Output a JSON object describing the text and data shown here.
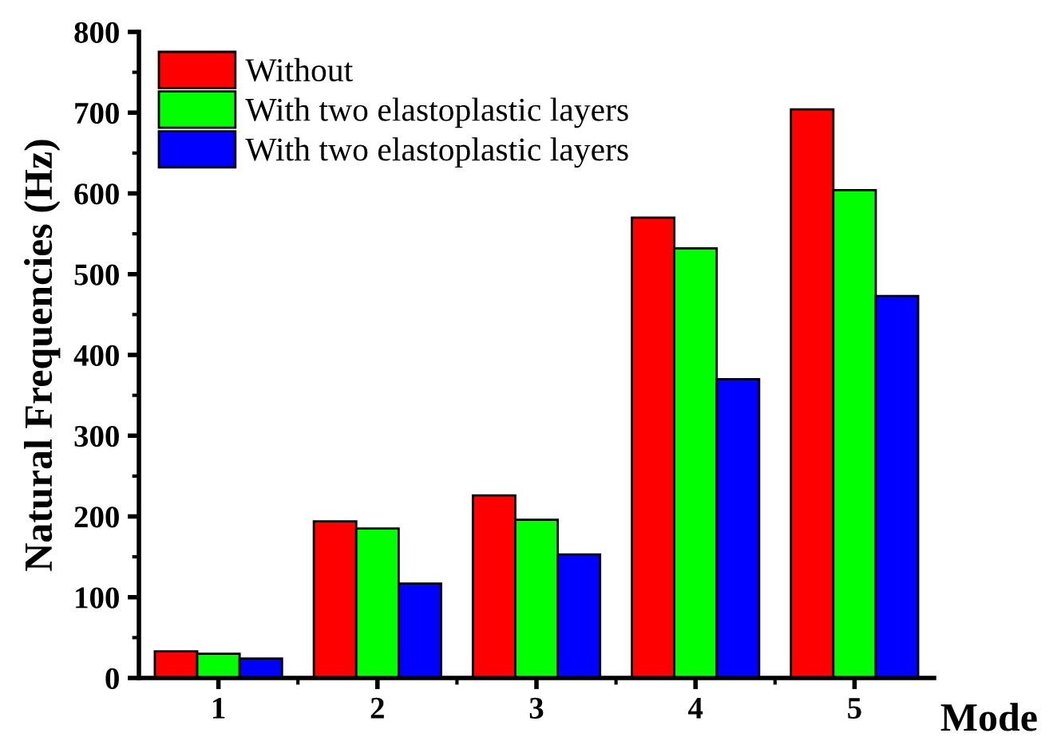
{
  "chart_data": {
    "type": "bar",
    "xlabel": "Mode",
    "ylabel": "Natural Frequencies (Hz)",
    "categories": [
      "1",
      "2",
      "3",
      "4",
      "5"
    ],
    "series": [
      {
        "name": "Without",
        "color": "#ff0000",
        "values": [
          33,
          194,
          226,
          570,
          704
        ]
      },
      {
        "name": "With two elastoplastic layers",
        "color": "#00ff00",
        "values": [
          30,
          185,
          196,
          532,
          604
        ]
      },
      {
        "name": "With two elastoplastic layers",
        "color": "#0000ff",
        "values": [
          24,
          117,
          153,
          370,
          473
        ]
      }
    ],
    "ylim": [
      0,
      800
    ],
    "yticks": [
      0,
      100,
      200,
      300,
      400,
      500,
      600,
      700,
      800
    ],
    "grid": false,
    "legend": "top left"
  }
}
